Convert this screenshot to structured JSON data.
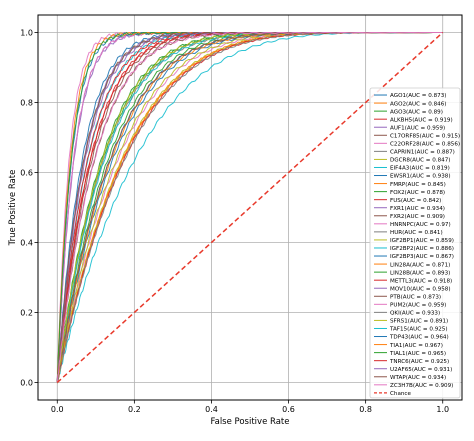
{
  "chart_data": {
    "type": "line",
    "title": "",
    "xlabel": "False Positive Rate",
    "ylabel": "True Positive Rate",
    "xlim": [
      -0.05,
      1.05
    ],
    "ylim": [
      -0.05,
      1.05
    ],
    "xticks": [
      "0.0",
      "0.2",
      "0.4",
      "0.6",
      "0.8",
      "1.0"
    ],
    "yticks": [
      "0.0",
      "0.2",
      "0.4",
      "0.6",
      "0.8",
      "1.0"
    ],
    "grid": true,
    "legend_position": "right",
    "series": [
      {
        "name": "AGO1(AUC = 0.873)",
        "auc": 0.873,
        "color": "#1f77b4"
      },
      {
        "name": "AGO2(AUC = 0.846)",
        "auc": 0.846,
        "color": "#ff7f0e"
      },
      {
        "name": "AGO3(AUC = 0.89)",
        "auc": 0.89,
        "color": "#2ca02c"
      },
      {
        "name": "ALKBH5(AUC = 0.919)",
        "auc": 0.919,
        "color": "#d62728"
      },
      {
        "name": "AUF1(AUC = 0.959)",
        "auc": 0.959,
        "color": "#9467bd"
      },
      {
        "name": "C17ORF85(AUC = 0.915)",
        "auc": 0.915,
        "color": "#8c564b"
      },
      {
        "name": "C22ORF28(AUC = 0.856)",
        "auc": 0.856,
        "color": "#e377c2"
      },
      {
        "name": "CAPRIN1(AUC = 0.887)",
        "auc": 0.887,
        "color": "#7f7f7f"
      },
      {
        "name": "DGCR8(AUC = 0.847)",
        "auc": 0.847,
        "color": "#bcbd22"
      },
      {
        "name": "EIF4A3(AUC = 0.819)",
        "auc": 0.819,
        "color": "#17becf"
      },
      {
        "name": "EWSR1(AUC = 0.938)",
        "auc": 0.938,
        "color": "#1f77b4"
      },
      {
        "name": "FMRP(AUC = 0.845)",
        "auc": 0.845,
        "color": "#ff7f0e"
      },
      {
        "name": "FOX2(AUC = 0.878)",
        "auc": 0.878,
        "color": "#2ca02c"
      },
      {
        "name": "FUS(AUC = 0.842)",
        "auc": 0.842,
        "color": "#d62728"
      },
      {
        "name": "FXR1(AUC = 0.934)",
        "auc": 0.934,
        "color": "#9467bd"
      },
      {
        "name": "FXR2(AUC = 0.909)",
        "auc": 0.909,
        "color": "#8c564b"
      },
      {
        "name": "HNRNPC(AUC = 0.97)",
        "auc": 0.97,
        "color": "#e377c2"
      },
      {
        "name": "HUR(AUC = 0.841)",
        "auc": 0.841,
        "color": "#7f7f7f"
      },
      {
        "name": "IGF2BP1(AUC = 0.859)",
        "auc": 0.859,
        "color": "#bcbd22"
      },
      {
        "name": "IGF2BP2(AUC = 0.886)",
        "auc": 0.886,
        "color": "#17becf"
      },
      {
        "name": "IGF2BP3(AUC = 0.867)",
        "auc": 0.867,
        "color": "#1f77b4"
      },
      {
        "name": "LIN28A(AUC = 0.871)",
        "auc": 0.871,
        "color": "#ff7f0e"
      },
      {
        "name": "LIN28B(AUC = 0.893)",
        "auc": 0.893,
        "color": "#2ca02c"
      },
      {
        "name": "METTL3(AUC = 0.918)",
        "auc": 0.918,
        "color": "#d62728"
      },
      {
        "name": "MOV10(AUC = 0.958)",
        "auc": 0.958,
        "color": "#9467bd"
      },
      {
        "name": "PTB(AUC = 0.873)",
        "auc": 0.873,
        "color": "#8c564b"
      },
      {
        "name": "PUM2(AUC = 0.959)",
        "auc": 0.959,
        "color": "#e377c2"
      },
      {
        "name": "QKI(AUC = 0.933)",
        "auc": 0.933,
        "color": "#7f7f7f"
      },
      {
        "name": "SFRS1(AUC = 0.891)",
        "auc": 0.891,
        "color": "#bcbd22"
      },
      {
        "name": "TAF15(AUC = 0.925)",
        "auc": 0.925,
        "color": "#17becf"
      },
      {
        "name": "TDP43(AUC = 0.964)",
        "auc": 0.964,
        "color": "#1f77b4"
      },
      {
        "name": "TIA1(AUC = 0.967)",
        "auc": 0.967,
        "color": "#ff7f0e"
      },
      {
        "name": "TIAL1(AUC = 0.965)",
        "auc": 0.965,
        "color": "#2ca02c"
      },
      {
        "name": "TNRC6(AUC = 0.925)",
        "auc": 0.925,
        "color": "#d62728"
      },
      {
        "name": "U2AF65(AUC = 0.931)",
        "auc": 0.931,
        "color": "#9467bd"
      },
      {
        "name": "WTAP(AUC = 0.934)",
        "auc": 0.934,
        "color": "#8c564b"
      },
      {
        "name": "ZC3H7B(AUC = 0.909)",
        "auc": 0.909,
        "color": "#e377c2"
      }
    ],
    "reference_line": {
      "name": "Chance",
      "x": [
        0,
        1
      ],
      "y": [
        0,
        1
      ],
      "color": "#e8392b",
      "style": "dashed"
    }
  }
}
